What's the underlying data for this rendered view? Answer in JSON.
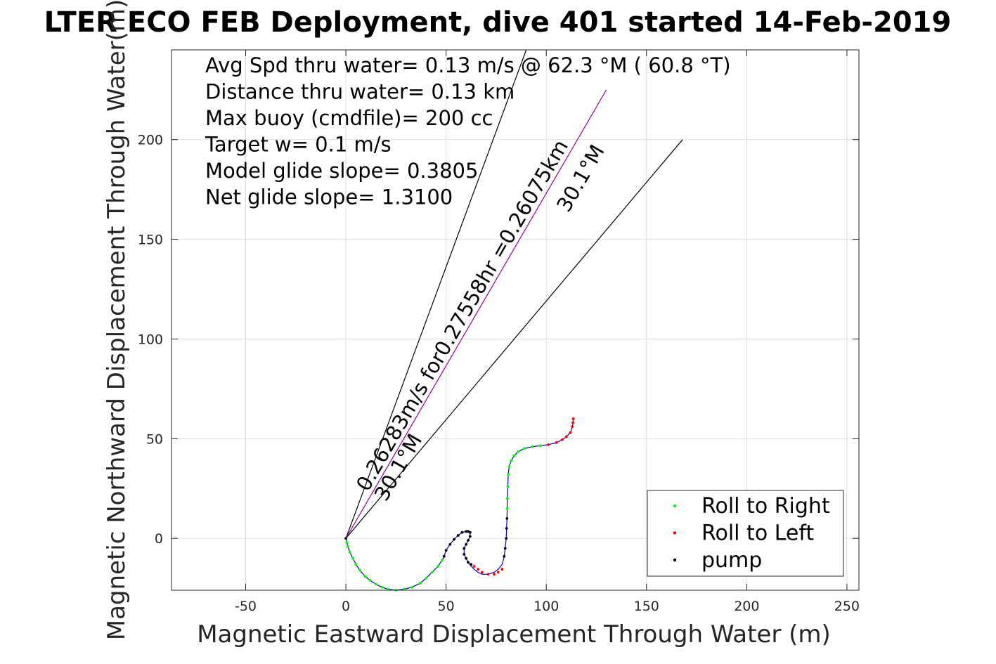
{
  "chart_data": {
    "type": "line",
    "title": "LTER ECO FEB Deployment, dive 401 started 14-Feb-2019",
    "xlabel": "Magnetic Eastward Displacement Through Water (m)",
    "ylabel": "Magnetic Northward Displacement Through Water(m)",
    "xlim": [
      -87,
      256
    ],
    "ylim": [
      -26,
      245
    ],
    "xticks": [
      -50,
      0,
      50,
      100,
      150,
      200,
      250
    ],
    "yticks": [
      0,
      50,
      100,
      150,
      200
    ],
    "grid": true,
    "legend_position": "bottom-right",
    "info_lines": [
      "Avg Spd thru water=  0.13 m/s @  62.3 °M ( 60.8 °T)",
      "Distance thru water=  0.13 km",
      "Max buoy (cmdfile)= 200 cc",
      "Target w= 0.1 m/s",
      "Model glide slope= 0.3805",
      "Net glide slope= 1.3100"
    ],
    "guide_lines": [
      {
        "name": "upper-bound",
        "x": [
          0,
          90
        ],
        "y": [
          0,
          245
        ],
        "color": "#000000"
      },
      {
        "name": "lower-bound",
        "x": [
          0,
          168
        ],
        "y": [
          0,
          200
        ],
        "color": "#000000"
      },
      {
        "name": "heading-line",
        "x": [
          0,
          130
        ],
        "y": [
          0,
          225
        ],
        "color": "#cc00cc"
      }
    ],
    "annotations": [
      {
        "text": "0.26283m/s for0.27558hr =0.26075km",
        "x": 11,
        "y": 23,
        "rotation_deg": -60
      },
      {
        "text": "30.1°M",
        "x": 20,
        "y": 18,
        "rotation_deg": -60
      },
      {
        "text": "30.1°M",
        "x": 111,
        "y": 163,
        "rotation_deg": -60
      }
    ],
    "track": {
      "color": "#0000cc",
      "x": [
        0,
        0.5,
        1,
        2,
        3.5,
        5,
        7,
        9.5,
        12,
        15,
        18,
        21,
        25,
        29,
        33,
        37,
        40,
        43,
        46,
        48,
        49,
        50,
        52,
        54,
        56,
        58,
        60,
        61,
        62,
        62,
        61,
        60,
        59,
        59,
        60,
        61,
        62.5,
        64,
        66,
        68,
        71,
        74,
        76,
        78,
        79,
        79.5,
        80,
        80.2,
        80.4,
        80.5,
        80.6,
        80.8,
        81,
        81.5,
        82.5,
        84,
        86,
        89,
        93,
        97,
        101,
        105,
        108,
        110,
        112,
        113,
        113.3,
        113.5
      ],
      "y": [
        0,
        -2,
        -4,
        -7,
        -10,
        -13,
        -16,
        -19,
        -21,
        -23,
        -24.5,
        -25.5,
        -26,
        -25.5,
        -24.5,
        -22.5,
        -20,
        -17,
        -14,
        -11,
        -9,
        -6,
        -3,
        -0.5,
        1.5,
        3,
        3.5,
        3.5,
        3,
        1,
        -1,
        -3,
        -5,
        -8,
        -10,
        -12,
        -14,
        -15.5,
        -17,
        -18,
        -18,
        -17,
        -15.5,
        -13,
        -9,
        -5,
        0,
        5,
        10,
        15,
        20,
        26,
        32,
        36,
        39,
        41.5,
        43.5,
        45,
        46,
        46.5,
        47,
        48,
        49.5,
        51,
        53,
        56,
        58,
        60
      ]
    },
    "series": [
      {
        "name": "Roll to Right",
        "color": "#00ff00",
        "x": [
          0.5,
          1,
          2,
          3.5,
          5,
          7,
          9.5,
          12,
          15,
          18,
          21,
          25,
          29,
          33,
          37,
          40,
          43,
          46,
          48,
          80.5,
          80.6,
          80.8,
          81,
          81.5,
          82.5,
          84,
          86,
          89,
          93,
          97
        ],
        "y": [
          -2,
          -4,
          -7,
          -10,
          -13,
          -16,
          -19,
          -21,
          -23,
          -24.5,
          -25.5,
          -26,
          -25.5,
          -24.5,
          -22.5,
          -20,
          -17,
          -14,
          -11,
          15,
          20,
          26,
          32,
          36,
          39,
          41.5,
          43.5,
          45,
          46,
          46.5
        ]
      },
      {
        "name": "Roll to Left",
        "color": "#ff0000",
        "x": [
          64,
          66,
          68,
          71,
          74,
          76,
          78,
          101,
          105,
          108,
          110,
          112,
          113,
          113.3,
          113.5
        ],
        "y": [
          -14,
          -15.5,
          -17,
          -18,
          -18,
          -17,
          -15.5,
          47,
          48,
          49.5,
          51,
          53,
          56,
          58,
          60
        ]
      },
      {
        "name": "pump",
        "color": "#000000",
        "x": [
          0,
          49,
          50,
          52,
          54,
          56,
          58,
          60,
          61,
          62,
          62,
          61,
          60,
          59,
          59,
          60,
          61,
          62.5,
          79,
          79.5,
          80,
          80.2,
          80.4
        ],
        "y": [
          0,
          -9,
          -6,
          -3,
          -0.5,
          1.5,
          3,
          3.5,
          3.5,
          3,
          1,
          -1,
          -3,
          -5,
          -8,
          -10,
          -12,
          -13,
          -9,
          -5,
          0,
          5,
          10
        ]
      }
    ]
  }
}
